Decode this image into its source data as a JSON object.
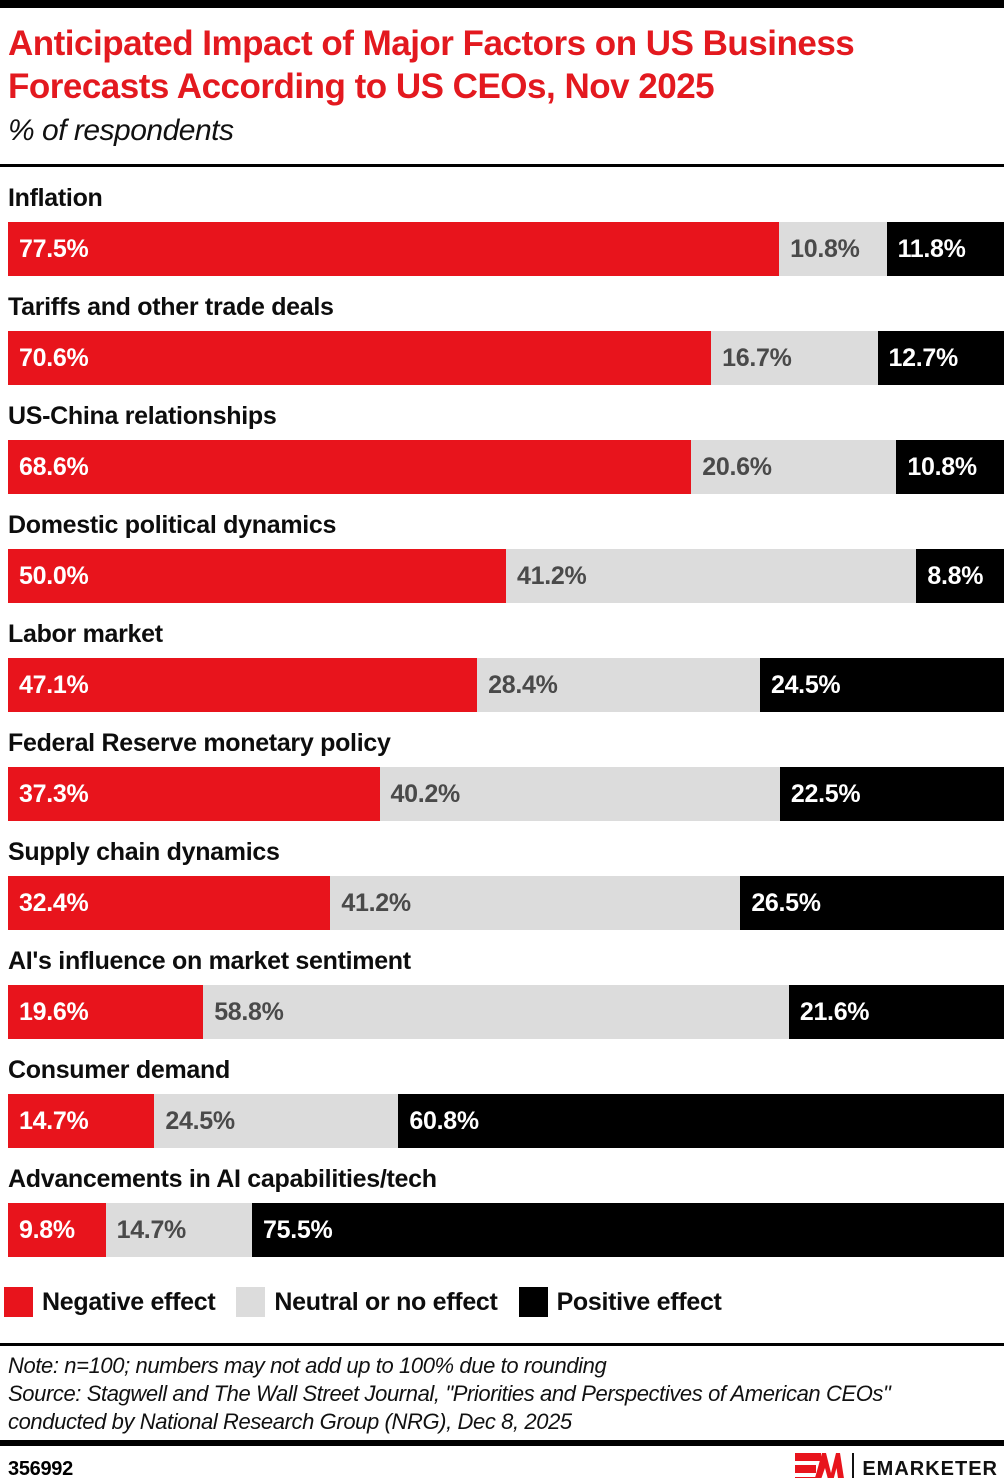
{
  "header": {
    "title": "Anticipated Impact of Major Factors on US Business Forecasts According to US CEOs, Nov 2025",
    "subtitle": "% of respondents"
  },
  "chart_data": {
    "type": "bar",
    "stacked": true,
    "orientation": "horizontal",
    "title": "Anticipated Impact of Major Factors on US Business Forecasts According to US CEOs, Nov 2025",
    "subtitle": "% of respondents",
    "xlim": [
      0,
      100
    ],
    "value_suffix": "%",
    "legend_position": "bottom",
    "categories": [
      "Inflation",
      "Tariffs and other trade deals",
      "US-China relationships",
      "Domestic political dynamics",
      "Labor market",
      "Federal Reserve monetary policy",
      "Supply chain dynamics",
      "AI's influence on market sentiment",
      "Consumer demand",
      "Advancements in AI capabilities/tech"
    ],
    "series": [
      {
        "name": "Negative effect",
        "color": "#e8141c",
        "label_color": "#ffffff",
        "values": [
          77.5,
          70.6,
          68.6,
          50.0,
          47.1,
          37.3,
          32.4,
          19.6,
          14.7,
          9.8
        ]
      },
      {
        "name": "Neutral or no effect",
        "color": "#dcdcdc",
        "label_color": "#4a4a4a",
        "values": [
          10.8,
          16.7,
          20.6,
          41.2,
          28.4,
          40.2,
          41.2,
          58.8,
          24.5,
          14.7
        ]
      },
      {
        "name": "Positive effect",
        "color": "#000000",
        "label_color": "#ffffff",
        "values": [
          11.8,
          12.7,
          10.8,
          8.8,
          24.5,
          22.5,
          26.5,
          21.6,
          60.8,
          75.5
        ]
      }
    ]
  },
  "notes": {
    "lines": [
      "Note: n=100; numbers may not add up to 100% due to rounding",
      "Source: Stagwell and The Wall Street Journal, \"Priorities and Perspectives of American CEOs\"",
      "conducted by National Research Group (NRG), Dec 8, 2025"
    ]
  },
  "footer": {
    "chart_id": "356992",
    "brand": "EMARKETER"
  },
  "colors": {
    "title_red": "#e3191f",
    "negative": "#e8141c",
    "neutral": "#dcdcdc",
    "positive": "#000000"
  }
}
